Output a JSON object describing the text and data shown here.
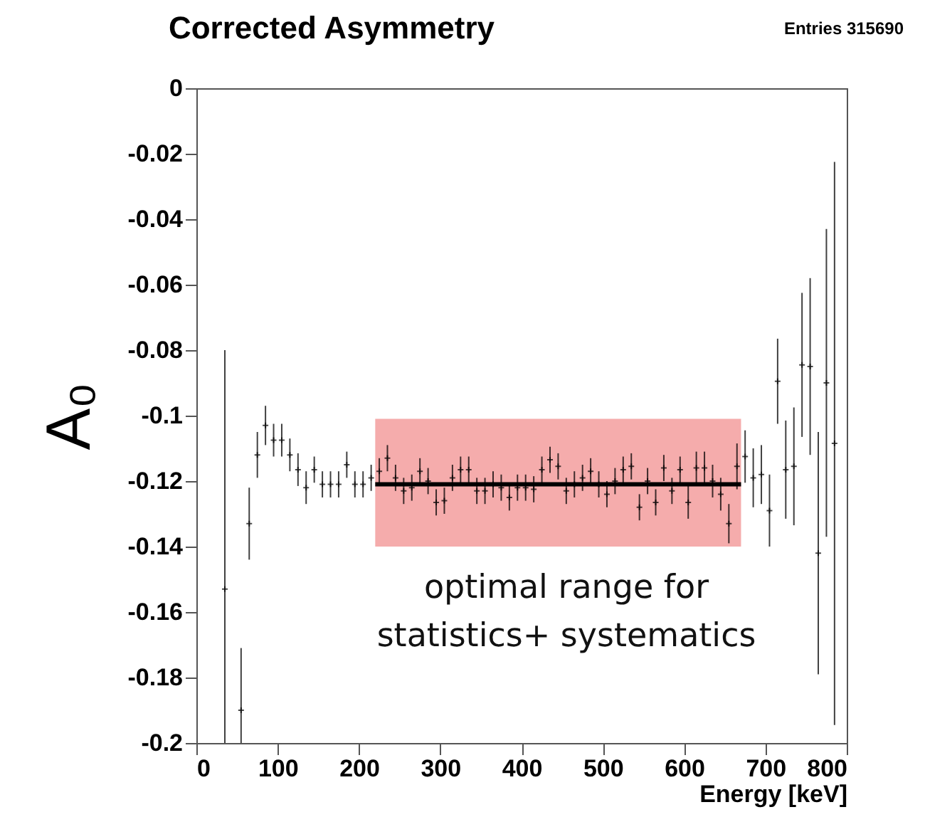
{
  "chart_data": {
    "type": "scatter",
    "title": "Corrected Asymmetry",
    "xlabel": "Energy  [keV]",
    "ylabel": "A₀",
    "annotations": [
      "Entries  315690",
      "optimal range for\nstatistics+ systematics"
    ],
    "marker": "cross",
    "xlim": [
      0,
      800
    ],
    "xticks": [
      0,
      100,
      200,
      300,
      400,
      500,
      600,
      700,
      800
    ],
    "ylim": [
      -0.2,
      0
    ],
    "yticks": [
      -0.2,
      -0.18,
      -0.16,
      -0.14,
      -0.12,
      -0.1,
      -0.08,
      -0.06,
      -0.04,
      -0.02,
      0
    ],
    "series": [
      {
        "color": "#000000",
        "x": [
          35,
          55,
          65,
          75,
          85,
          95,
          105,
          115,
          125,
          135,
          145,
          155,
          165,
          175,
          185,
          195,
          205,
          215,
          225,
          235,
          245,
          255,
          265,
          275,
          285,
          295,
          305,
          315,
          325,
          335,
          345,
          355,
          365,
          375,
          385,
          395,
          405,
          415,
          425,
          435,
          445,
          455,
          465,
          475,
          485,
          495,
          505,
          515,
          525,
          535,
          545,
          555,
          565,
          575,
          585,
          595,
          605,
          615,
          625,
          635,
          645,
          655,
          665,
          675,
          685,
          695,
          705,
          715,
          725,
          735,
          745,
          755,
          765,
          775,
          785
        ],
        "values": [
          -0.153,
          -0.19,
          -0.133,
          -0.112,
          -0.103,
          -0.1075,
          -0.1075,
          -0.112,
          -0.1165,
          -0.122,
          -0.1165,
          -0.121,
          -0.121,
          -0.121,
          -0.115,
          -0.121,
          -0.121,
          -0.119,
          -0.117,
          -0.113,
          -0.119,
          -0.123,
          -0.122,
          -0.117,
          -0.12,
          -0.1265,
          -0.126,
          -0.119,
          -0.1165,
          -0.1165,
          -0.123,
          -0.123,
          -0.121,
          -0.122,
          -0.125,
          -0.122,
          -0.122,
          -0.1225,
          -0.1165,
          -0.1135,
          -0.1155,
          -0.123,
          -0.121,
          -0.119,
          -0.117,
          -0.121,
          -0.124,
          -0.12,
          -0.1165,
          -0.1155,
          -0.128,
          -0.12,
          -0.1265,
          -0.116,
          -0.123,
          -0.1165,
          -0.1265,
          -0.116,
          -0.116,
          -0.12,
          -0.124,
          -0.133,
          -0.1155,
          -0.1125,
          -0.119,
          -0.118,
          -0.129,
          -0.0895,
          -0.1165,
          -0.1155,
          -0.0845,
          -0.085,
          -0.142,
          -0.09,
          -0.1085
        ],
        "errors": [
          [
            -0.2,
            -0.08
          ],
          [
            -0.2,
            -0.171
          ],
          0.011,
          0.007,
          0.006,
          0.005,
          0.005,
          0.005,
          0.005,
          0.005,
          0.004,
          0.004,
          0.004,
          0.004,
          0.004,
          0.004,
          0.004,
          0.004,
          0.004,
          0.004,
          0.004,
          0.004,
          0.004,
          0.004,
          0.004,
          0.004,
          0.004,
          0.004,
          0.004,
          0.004,
          0.004,
          0.004,
          0.004,
          0.004,
          0.004,
          0.004,
          0.004,
          0.004,
          0.004,
          0.004,
          0.004,
          0.004,
          0.004,
          0.004,
          0.004,
          0.004,
          0.004,
          0.004,
          0.004,
          0.004,
          0.004,
          0.004,
          0.004,
          0.004,
          0.004,
          0.004,
          0.005,
          0.005,
          0.005,
          0.005,
          0.005,
          0.006,
          0.007,
          0.008,
          0.009,
          0.009,
          0.011,
          0.013,
          0.015,
          0.018,
          0.022,
          0.027,
          0.037,
          0.047,
          0.086
        ]
      },
      {
        "type": "line",
        "marker": "none",
        "color": "#000000",
        "x": [
          220,
          670
        ],
        "values": [
          -0.121,
          -0.121
        ],
        "lower": [
          -0.14,
          -0.14
        ],
        "upper": [
          -0.101,
          -0.101
        ]
      }
    ]
  }
}
